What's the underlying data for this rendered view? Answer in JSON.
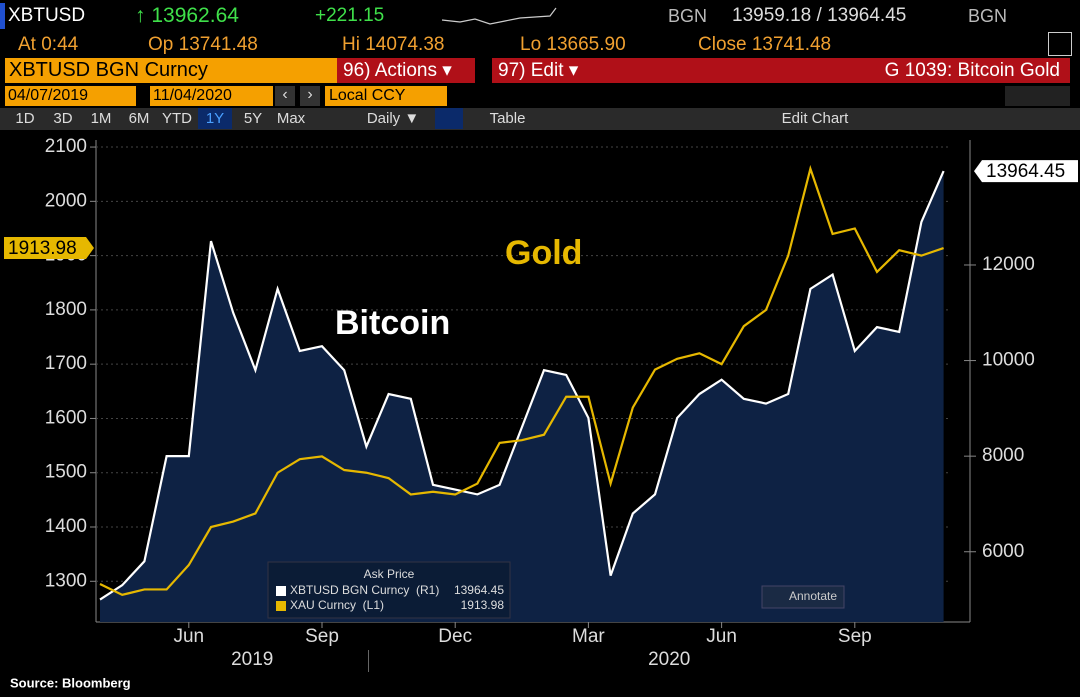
{
  "header": {
    "ticker": "XBTUSD",
    "last": "↑ 13962.64",
    "change": "+221.15",
    "src1": "BGN",
    "bidask": "13959.18 / 13964.45",
    "src2": "BGN",
    "at": "At 0:44",
    "open": "Op 13741.48",
    "high": "Hi 14074.38",
    "low": "Lo 13665.90",
    "close": "Close 13741.48",
    "security": "XBTUSD BGN Curncy",
    "actions": "96) Actions ▾",
    "edit": "97) Edit ▾",
    "chart_name": "G 1039: Bitcoin Gold",
    "start_date": "04/07/2019",
    "end_date": "11/04/2020",
    "currency": "Local CCY",
    "ranges": [
      "1D",
      "3D",
      "1M",
      "6M",
      "YTD",
      "1Y",
      "5Y",
      "Max"
    ],
    "frequency": "Daily ▼",
    "table": "Table",
    "edit_chart": "Edit Chart"
  },
  "chart_data": {
    "type": "line",
    "categories": [
      null,
      null,
      null,
      null,
      "Jun",
      null,
      null,
      null,
      null,
      null,
      "Sep",
      null,
      null,
      null,
      null,
      null,
      "Dec",
      null,
      null,
      null,
      null,
      null,
      "Mar",
      null,
      null,
      null,
      null,
      null,
      "Jun",
      null,
      null,
      null,
      null,
      null,
      "Sep",
      null,
      null,
      null,
      null
    ],
    "x_group_labels": [
      "2019",
      "2020"
    ],
    "series": [
      {
        "name": "XBTUSD BGN Curncy  (R1)",
        "color": "#ffffff",
        "axis": "y2",
        "values": [
          5000,
          5300,
          5800,
          8000,
          8000,
          12500,
          11000,
          9800,
          11500,
          10200,
          10300,
          9800,
          8200,
          9300,
          9200,
          7400,
          7300,
          7200,
          7400,
          8600,
          9800,
          9700,
          8800,
          5500,
          6800,
          7200,
          8800,
          9300,
          9600,
          9200,
          9100,
          9300,
          11500,
          11800,
          10200,
          10700,
          10600,
          12900,
          13964.45
        ]
      },
      {
        "name": "XAU Curncy  (L1)",
        "color": "#e6b800",
        "values": [
          1295,
          1275,
          1285,
          1285,
          1330,
          1400,
          1410,
          1425,
          1500,
          1525,
          1530,
          1505,
          1500,
          1490,
          1460,
          1465,
          1460,
          1480,
          1555,
          1560,
          1570,
          1640,
          1640,
          1480,
          1620,
          1690,
          1710,
          1720,
          1700,
          1770,
          1800,
          1900,
          2060,
          1940,
          1950,
          1870,
          1910,
          1900,
          1913.98
        ]
      }
    ],
    "ylim": [
      1225,
      2113
    ],
    "yticks": [
      1300,
      1400,
      1500,
      1600,
      1700,
      1800,
      1900,
      2000,
      2100
    ],
    "y2lim": [
      4530,
      14615
    ],
    "y2ticks": [
      6000,
      8000,
      10000,
      12000
    ],
    "grid": true,
    "legend_title": "Ask Price",
    "annotations": [
      "Bitcoin",
      "Gold"
    ],
    "annotate_button": "Annotate",
    "source": "Source: Bloomberg"
  }
}
